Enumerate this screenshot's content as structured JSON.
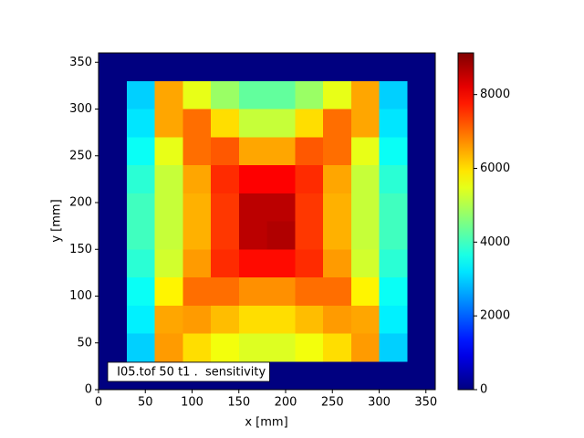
{
  "chart_data": {
    "type": "heatmap",
    "xlabel": "x [mm]",
    "ylabel": "y [mm]",
    "annotation": " I05.tof 50 t1 .  sensitivity",
    "colormap": "jet",
    "xlim": [
      0,
      360
    ],
    "ylim": [
      0,
      360
    ],
    "xticks": [
      0,
      50,
      100,
      150,
      200,
      250,
      300,
      350
    ],
    "yticks": [
      0,
      50,
      100,
      150,
      200,
      250,
      300,
      350
    ],
    "clim": [
      0,
      9130
    ],
    "cticks": [
      0,
      2000,
      4000,
      6000,
      8000
    ],
    "x_edges": [
      0,
      30,
      60,
      90,
      120,
      150,
      180,
      210,
      240,
      270,
      300,
      330,
      360
    ],
    "y_edges": [
      360,
      330,
      300,
      270,
      240,
      210,
      180,
      150,
      120,
      90,
      60,
      30,
      0
    ],
    "z": [
      [
        0,
        0,
        0,
        0,
        0,
        0,
        0,
        0,
        0,
        0,
        0,
        0
      ],
      [
        0,
        3000,
        6500,
        5500,
        4800,
        4300,
        4300,
        4800,
        5500,
        6500,
        3000,
        0
      ],
      [
        0,
        3200,
        6500,
        7000,
        6000,
        5200,
        5200,
        6000,
        7000,
        6500,
        3200,
        0
      ],
      [
        0,
        3500,
        5500,
        7000,
        7200,
        6500,
        6500,
        7200,
        7000,
        5500,
        3500,
        0
      ],
      [
        0,
        3800,
        5200,
        6500,
        7600,
        8000,
        8000,
        7600,
        6500,
        5200,
        3800,
        0
      ],
      [
        0,
        4000,
        5200,
        6400,
        7500,
        8600,
        8600,
        7500,
        6400,
        5200,
        4000,
        0
      ],
      [
        0,
        4000,
        5200,
        6400,
        7500,
        8600,
        8700,
        7500,
        6400,
        5200,
        4000,
        0
      ],
      [
        0,
        3800,
        5300,
        6600,
        7600,
        7900,
        7900,
        7600,
        6600,
        5300,
        3800,
        0
      ],
      [
        0,
        3500,
        5800,
        7000,
        7000,
        6700,
        6700,
        7000,
        7000,
        5800,
        3500,
        0
      ],
      [
        0,
        3300,
        6500,
        6600,
        6300,
        6000,
        6000,
        6300,
        6600,
        6500,
        3300,
        0
      ],
      [
        0,
        3000,
        6600,
        6000,
        5600,
        5400,
        5400,
        5600,
        6000,
        6600,
        3000,
        0
      ],
      [
        0,
        0,
        0,
        0,
        0,
        0,
        0,
        0,
        0,
        0,
        0,
        0
      ]
    ]
  }
}
